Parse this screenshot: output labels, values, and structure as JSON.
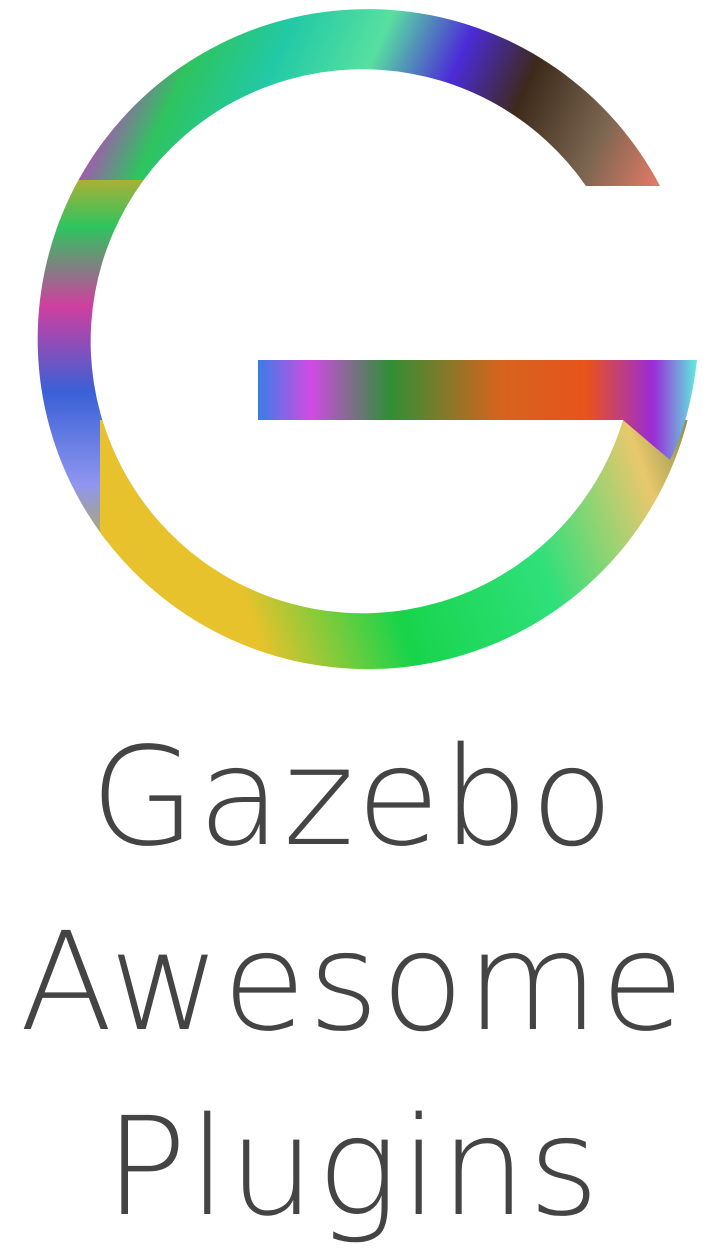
{
  "logo": {
    "icon": "gradient-letter-g-icon",
    "wordmark_lines": [
      "Gazebo",
      "Awesome",
      "Plugins"
    ]
  },
  "colors": {
    "text": "#444444",
    "background": "#ffffff",
    "gradient_stops": [
      "#22c9a6",
      "#4b2bd8",
      "#3d2a1a",
      "#e07a67",
      "#cc33cc",
      "#4444dd",
      "#eda520",
      "#2ec45e",
      "#cf3f9f",
      "#8f96f0",
      "#e8c22c",
      "#17d44b",
      "#2fe07b",
      "#e9c86c",
      "#1f4d2a",
      "#e52b1d",
      "#d5641e",
      "#5eeedd",
      "#d14be4",
      "#3a7de6"
    ]
  }
}
